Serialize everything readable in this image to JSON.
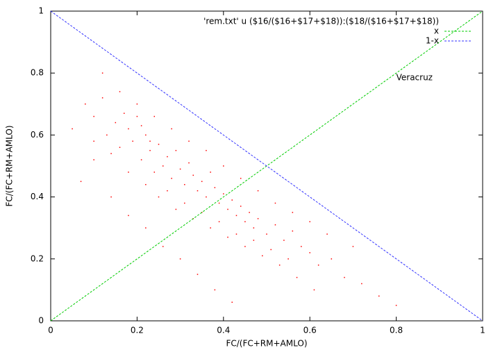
{
  "chart_data": {
    "type": "scatter",
    "xlabel": "FC/(FC+RM+AMLO)",
    "ylabel": "FC/(FC+RM+AMLO)",
    "xlim": [
      0,
      1
    ],
    "ylim": [
      0,
      1
    ],
    "xticks": [
      0,
      0.2,
      0.4,
      0.6,
      0.8,
      1
    ],
    "yticks": [
      0,
      0.2,
      0.4,
      0.6,
      0.8,
      1
    ],
    "legend": "top-right",
    "annotations": [
      {
        "text": "Veracruz",
        "x": 0.8,
        "y": 0.8
      }
    ],
    "series": [
      {
        "name": "'rem.txt' u ($16/($16+$17+$18)):($18/($16+$17+$18))",
        "color": "#ff0000",
        "style": "points",
        "x": [
          0.05,
          0.08,
          0.1,
          0.12,
          0.13,
          0.15,
          0.16,
          0.18,
          0.19,
          0.2,
          0.21,
          0.22,
          0.23,
          0.24,
          0.25,
          0.26,
          0.27,
          0.28,
          0.29,
          0.3,
          0.31,
          0.32,
          0.33,
          0.34,
          0.35,
          0.36,
          0.37,
          0.38,
          0.39,
          0.4,
          0.41,
          0.42,
          0.43,
          0.44,
          0.45,
          0.46,
          0.47,
          0.48,
          0.5,
          0.52,
          0.54,
          0.56,
          0.58,
          0.6,
          0.62,
          0.65,
          0.68,
          0.72,
          0.76,
          0.8,
          0.07,
          0.1,
          0.14,
          0.18,
          0.22,
          0.26,
          0.3,
          0.34,
          0.38,
          0.42,
          0.12,
          0.16,
          0.2,
          0.24,
          0.28,
          0.32,
          0.36,
          0.4,
          0.44,
          0.48,
          0.52,
          0.56,
          0.6,
          0.64,
          0.7,
          0.25,
          0.29,
          0.33,
          0.37,
          0.41,
          0.45,
          0.49,
          0.53,
          0.57,
          0.61,
          0.18,
          0.22,
          0.27,
          0.31,
          0.35,
          0.39,
          0.43,
          0.47,
          0.51,
          0.55,
          0.1,
          0.14,
          0.17,
          0.21,
          0.23
        ],
        "values": [
          0.62,
          0.7,
          0.66,
          0.72,
          0.6,
          0.64,
          0.56,
          0.62,
          0.58,
          0.66,
          0.52,
          0.6,
          0.55,
          0.48,
          0.57,
          0.5,
          0.53,
          0.46,
          0.55,
          0.49,
          0.44,
          0.51,
          0.47,
          0.42,
          0.45,
          0.4,
          0.48,
          0.43,
          0.38,
          0.41,
          0.36,
          0.39,
          0.34,
          0.37,
          0.32,
          0.35,
          0.3,
          0.33,
          0.28,
          0.31,
          0.26,
          0.29,
          0.24,
          0.22,
          0.18,
          0.2,
          0.14,
          0.12,
          0.08,
          0.05,
          0.45,
          0.52,
          0.4,
          0.34,
          0.3,
          0.24,
          0.2,
          0.15,
          0.1,
          0.06,
          0.8,
          0.74,
          0.7,
          0.66,
          0.62,
          0.58,
          0.55,
          0.5,
          0.46,
          0.42,
          0.38,
          0.35,
          0.32,
          0.28,
          0.24,
          0.4,
          0.36,
          0.33,
          0.3,
          0.27,
          0.24,
          0.21,
          0.18,
          0.14,
          0.1,
          0.48,
          0.44,
          0.42,
          0.38,
          0.35,
          0.32,
          0.28,
          0.26,
          0.23,
          0.2,
          0.58,
          0.54,
          0.67,
          0.63,
          0.58
        ]
      },
      {
        "name": "x",
        "color": "#00cc00",
        "style": "line",
        "x": [
          0,
          1
        ],
        "values": [
          0,
          1
        ]
      },
      {
        "name": "1-x",
        "color": "#3333ff",
        "style": "line",
        "x": [
          0,
          1
        ],
        "values": [
          1,
          0
        ]
      }
    ]
  }
}
